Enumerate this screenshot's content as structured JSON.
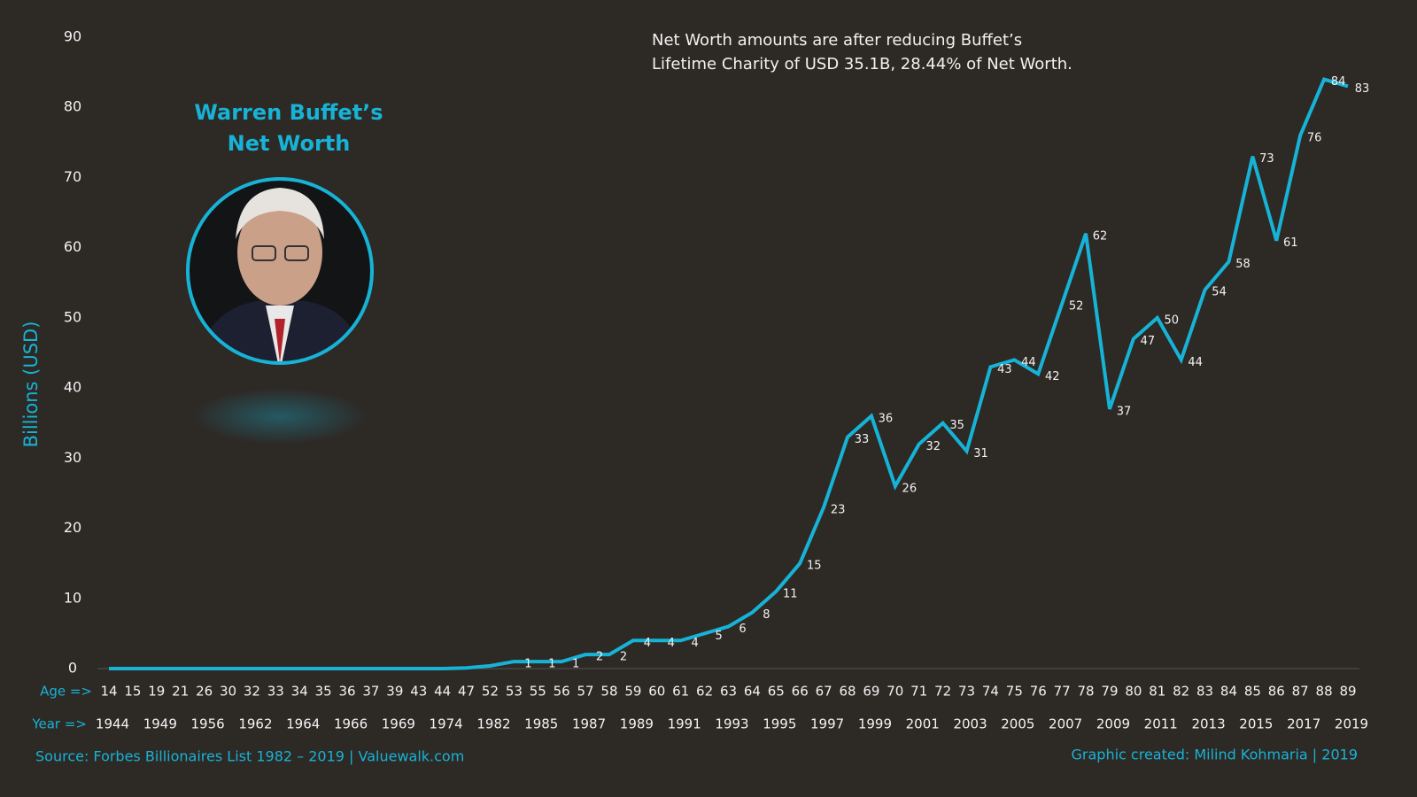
{
  "chart_data": {
    "type": "line",
    "title_lines": [
      "Warren Buffet’s",
      "Net Worth"
    ],
    "note_lines": [
      "Net Worth amounts are after reducing Buffet’s",
      "Lifetime Charity of USD 35.1B, 28.44% of Net Worth."
    ],
    "y_label": "Billions (USD)",
    "category_row_label": "Age =>",
    "year_row_label": "Year =>",
    "categories": [
      "14",
      "15",
      "19",
      "21",
      "26",
      "30",
      "32",
      "33",
      "34",
      "35",
      "36",
      "37",
      "39",
      "43",
      "44",
      "47",
      "52",
      "53",
      "55",
      "56",
      "57",
      "58",
      "59",
      "60",
      "61",
      "62",
      "63",
      "64",
      "65",
      "66",
      "67",
      "68",
      "69",
      "70",
      "71",
      "72",
      "73",
      "74",
      "75",
      "76",
      "77",
      "78",
      "79",
      "80",
      "81",
      "82",
      "83",
      "84",
      "85",
      "86",
      "87",
      "88",
      "89"
    ],
    "years": [
      "1944",
      null,
      "1949",
      null,
      "1956",
      null,
      "1962",
      null,
      "1964",
      null,
      "1966",
      null,
      "1969",
      null,
      "1974",
      null,
      "1982",
      null,
      "1985",
      null,
      "1987",
      null,
      "1989",
      null,
      "1991",
      null,
      "1993",
      null,
      "1995",
      null,
      "1997",
      null,
      "1999",
      null,
      "2001",
      null,
      "2003",
      null,
      "2005",
      null,
      "2007",
      null,
      "2009",
      null,
      "2011",
      null,
      "2013",
      null,
      "2015",
      null,
      "2017",
      null,
      "2019"
    ],
    "values": [
      0,
      0,
      0,
      0,
      0,
      0,
      0,
      0,
      0,
      0,
      0,
      0,
      0,
      0,
      0,
      0.1,
      0.4,
      1,
      1,
      1,
      2,
      2,
      4,
      4,
      4,
      5,
      6,
      8,
      11,
      15,
      23,
      33,
      36,
      26,
      32,
      35,
      31,
      43,
      44,
      42,
      52,
      62,
      37,
      47,
      50,
      44,
      54,
      58,
      73,
      61,
      76,
      84,
      83
    ],
    "value_labels": [
      null,
      null,
      null,
      null,
      null,
      null,
      null,
      null,
      null,
      null,
      null,
      null,
      null,
      null,
      null,
      null,
      null,
      "1",
      "1",
      "1",
      "2",
      "2",
      "4",
      "4",
      "4",
      "5",
      "6",
      "8",
      "11",
      "15",
      "23",
      "33",
      "36",
      "26",
      "32",
      "35",
      "31",
      "43",
      "44",
      "42",
      "52",
      "62",
      "37",
      "47",
      "50",
      "44",
      "54",
      "58",
      "73",
      "61",
      "76",
      "84",
      "83"
    ],
    "color": "#17b3d6",
    "ylim": [
      0,
      90
    ],
    "yticks": [
      0,
      10,
      20,
      30,
      40,
      50,
      60,
      70,
      80,
      90
    ],
    "source": "Source: Forbes Billionaires List 1982 – 2019 | Valuewalk.com",
    "credit": "Graphic created: Milind Kohmaria | 2019"
  }
}
